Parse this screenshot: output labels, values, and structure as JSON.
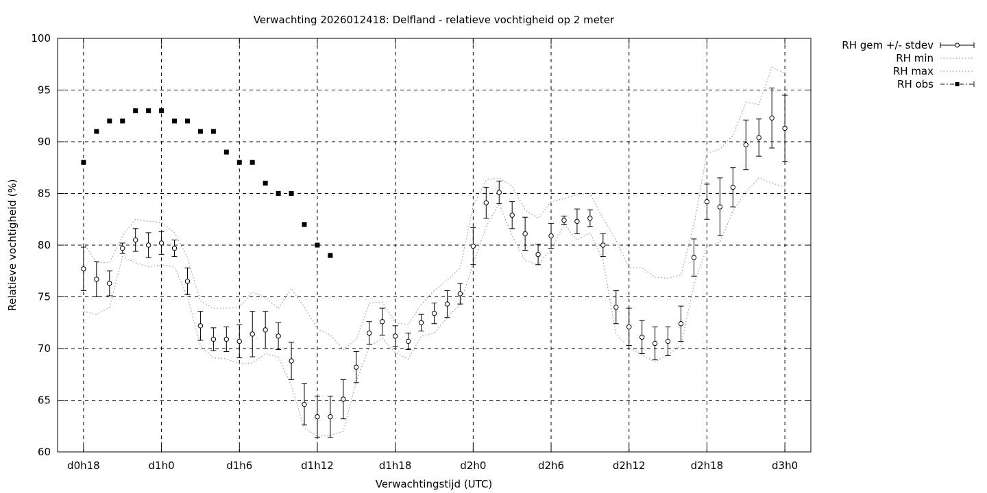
{
  "chart_data": {
    "type": "line",
    "title": "Verwachting 2026012418: Delfland - relatieve vochtigheid op 2 meter",
    "xlabel": "Verwachtingstijd (UTC)",
    "ylabel": "Relatieve vochtigheid (%)",
    "xlim": [
      -2,
      56
    ],
    "ylim": [
      60,
      100
    ],
    "yticks": [
      60,
      65,
      70,
      75,
      80,
      85,
      90,
      95,
      100
    ],
    "xticks": [
      {
        "x": 0,
        "label": "d0h18"
      },
      {
        "x": 6,
        "label": "d1h0"
      },
      {
        "x": 12,
        "label": "d1h6"
      },
      {
        "x": 18,
        "label": "d1h12"
      },
      {
        "x": 24,
        "label": "d1h18"
      },
      {
        "x": 30,
        "label": "d2h0"
      },
      {
        "x": 36,
        "label": "d2h6"
      },
      {
        "x": 42,
        "label": "d2h12"
      },
      {
        "x": 48,
        "label": "d2h18"
      },
      {
        "x": 54,
        "label": "d3h0"
      }
    ],
    "grid": true,
    "legend_position": "outside-top-right",
    "series": [
      {
        "name": "RH gem +/- stdev",
        "style": "errorbars-open-circles",
        "color": "#000000",
        "x": [
          0,
          1,
          2,
          3,
          4,
          5,
          6,
          7,
          8,
          9,
          10,
          11,
          12,
          13,
          14,
          15,
          16,
          17,
          18,
          19,
          20,
          21,
          22,
          23,
          24,
          25,
          26,
          27,
          28,
          29,
          30,
          31,
          32,
          33,
          34,
          35,
          36,
          37,
          38,
          39,
          40,
          41,
          42,
          43,
          44,
          45,
          46,
          47,
          48,
          49,
          50,
          51,
          52,
          53,
          54
        ],
        "y": [
          77.7,
          76.7,
          76.3,
          79.7,
          80.5,
          80.0,
          80.2,
          79.7,
          76.5,
          72.2,
          70.9,
          70.9,
          70.7,
          71.4,
          71.8,
          71.2,
          68.8,
          64.6,
          63.4,
          63.4,
          65.1,
          68.2,
          71.5,
          72.6,
          71.2,
          70.7,
          72.5,
          73.4,
          74.3,
          75.3,
          79.9,
          84.1,
          85.1,
          82.9,
          81.1,
          79.1,
          80.9,
          82.4,
          82.3,
          82.6,
          80.0,
          74.0,
          72.1,
          71.1,
          70.5,
          70.7,
          72.4,
          78.8,
          84.2,
          83.7,
          85.6,
          89.7,
          90.4,
          92.3,
          91.3
        ],
        "stdev": [
          2.1,
          1.7,
          1.2,
          0.5,
          1.1,
          1.2,
          1.1,
          0.8,
          1.3,
          1.4,
          1.1,
          1.2,
          1.6,
          2.2,
          1.8,
          1.3,
          1.8,
          2.0,
          2.0,
          2.0,
          1.9,
          1.5,
          1.1,
          1.3,
          1.0,
          0.8,
          0.8,
          1.0,
          1.3,
          1.0,
          1.8,
          1.5,
          1.1,
          1.3,
          1.6,
          1.0,
          1.2,
          0.4,
          1.2,
          0.8,
          1.1,
          1.6,
          1.8,
          1.6,
          1.6,
          1.4,
          1.7,
          1.8,
          1.7,
          2.8,
          1.9,
          2.4,
          1.8,
          2.9,
          3.2
        ]
      },
      {
        "name": "RH min",
        "style": "dotted",
        "color": "#999999",
        "x": [
          0,
          1,
          2,
          3,
          4,
          5,
          6,
          7,
          8,
          9,
          10,
          11,
          12,
          13,
          14,
          15,
          16,
          17,
          18,
          19,
          20,
          21,
          22,
          23,
          24,
          25,
          26,
          27,
          28,
          29,
          30,
          31,
          32,
          33,
          34,
          35,
          36,
          37,
          38,
          39,
          40,
          41,
          42,
          43,
          44,
          45,
          46,
          47,
          48,
          49,
          50,
          51,
          52,
          53,
          54
        ],
        "y": [
          73.6,
          73.3,
          74.0,
          78.9,
          78.3,
          77.9,
          78.1,
          77.9,
          75.0,
          70.3,
          69.1,
          69.0,
          68.5,
          68.6,
          69.5,
          69.2,
          66.4,
          62.3,
          61.5,
          61.6,
          62.0,
          66.8,
          70.2,
          71.0,
          69.6,
          69.0,
          71.2,
          71.5,
          73.0,
          74.3,
          78.2,
          81.8,
          84.0,
          80.9,
          78.5,
          78.1,
          79.6,
          82.0,
          80.5,
          81.2,
          78.5,
          71.4,
          70.1,
          69.4,
          68.7,
          69.4,
          70.3,
          76.2,
          79.8,
          80.3,
          83.3,
          85.2,
          86.5,
          86.0,
          85.6
        ]
      },
      {
        "name": "RH max",
        "style": "dotted",
        "color": "#999999",
        "x": [
          0,
          1,
          2,
          3,
          4,
          5,
          6,
          7,
          8,
          9,
          10,
          11,
          12,
          13,
          14,
          15,
          16,
          17,
          18,
          19,
          20,
          21,
          22,
          23,
          24,
          25,
          26,
          27,
          28,
          29,
          30,
          31,
          32,
          33,
          34,
          35,
          36,
          37,
          38,
          39,
          40,
          41,
          42,
          43,
          44,
          45,
          46,
          47,
          48,
          49,
          50,
          51,
          52,
          53,
          54
        ],
        "y": [
          80.2,
          78.3,
          78.3,
          80.9,
          82.5,
          82.3,
          82.2,
          81.2,
          78.8,
          74.6,
          73.9,
          73.9,
          74.0,
          75.5,
          74.9,
          73.9,
          75.8,
          74.0,
          71.9,
          71.3,
          69.9,
          70.9,
          74.4,
          74.5,
          72.5,
          72.3,
          74.3,
          75.6,
          76.6,
          77.8,
          83.8,
          86.3,
          86.5,
          85.7,
          83.4,
          82.6,
          84.2,
          84.5,
          84.9,
          85.0,
          82.6,
          80.5,
          77.8,
          77.8,
          76.9,
          76.8,
          77.1,
          82.0,
          88.9,
          89.3,
          90.6,
          93.8,
          93.6,
          97.2,
          96.6
        ]
      },
      {
        "name": "RH obs",
        "style": "filled-squares",
        "color": "#000000",
        "x": [
          0,
          1,
          2,
          3,
          4,
          5,
          6,
          7,
          8,
          9,
          10,
          11,
          12,
          13,
          14,
          15,
          16,
          17,
          18,
          19
        ],
        "y": [
          88,
          91,
          92,
          92,
          93,
          93,
          93,
          92,
          92,
          91,
          91,
          89,
          88,
          88,
          86,
          85,
          85,
          82,
          80,
          79
        ]
      }
    ]
  }
}
